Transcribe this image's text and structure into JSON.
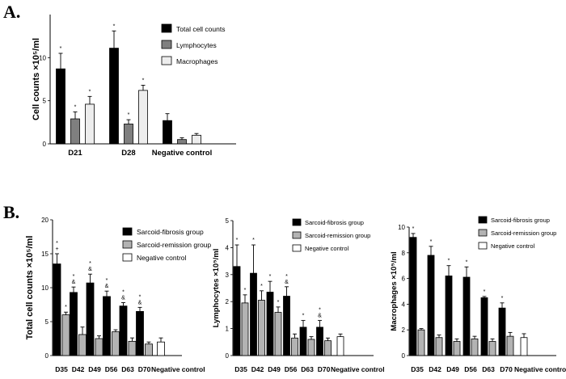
{
  "panel_labels": {
    "a": "A.",
    "b": "B."
  },
  "chart_data": [
    {
      "type": "bar",
      "title": "",
      "xlabel": "",
      "ylabel": "Cell counts ×10⁵/ml",
      "ylim": [
        0,
        15
      ],
      "yticks": [
        0,
        5,
        10
      ],
      "categories": [
        "D21",
        "D28",
        "Negative control"
      ],
      "legend_position": "top-right",
      "series": [
        {
          "name": "Total cell counts",
          "color": "#000000",
          "values": [
            8.7,
            11.1,
            2.7
          ],
          "errors": [
            1.8,
            2.0,
            0.8
          ],
          "marks": [
            "*",
            "*",
            ""
          ]
        },
        {
          "name": "Lymphocytes",
          "color": "#7f7f7f",
          "values": [
            2.9,
            2.3,
            0.5
          ],
          "errors": [
            0.8,
            0.5,
            0.2
          ],
          "marks": [
            "*",
            "*",
            ""
          ]
        },
        {
          "name": "Macrophages",
          "color": "#ededed",
          "values": [
            4.6,
            6.2,
            1.0
          ],
          "errors": [
            0.9,
            0.6,
            0.2
          ],
          "marks": [
            "*",
            "*",
            ""
          ]
        }
      ]
    },
    {
      "type": "bar",
      "title": "",
      "xlabel": "",
      "ylabel": "Total cell counts ×10⁵/ml",
      "ylim": [
        0,
        20
      ],
      "yticks": [
        0,
        5,
        10,
        15,
        20
      ],
      "categories": [
        "D35",
        "D42",
        "D49",
        "D56",
        "D63",
        "D70",
        "Negative control"
      ],
      "legend_position": "top-right",
      "series": [
        {
          "name": "Sarcoid-fibrosis group",
          "color": "#000000",
          "values": [
            13.5,
            9.3,
            10.7,
            8.7,
            7.3,
            6.5,
            null
          ],
          "errors": [
            1.5,
            0.8,
            1.3,
            0.8,
            0.5,
            0.6,
            null
          ],
          "marks": [
            "*\n+",
            "*\n&",
            "*\n&",
            "*\n&",
            "*\n&",
            "*\n&",
            ""
          ]
        },
        {
          "name": "Sarcoid-remission group",
          "color": "#b3b3b3",
          "values": [
            6.0,
            3.1,
            2.5,
            3.5,
            2.1,
            1.7,
            null
          ],
          "errors": [
            0.4,
            1.1,
            0.4,
            0.3,
            0.5,
            0.3,
            null
          ],
          "marks": [
            "*",
            "",
            "",
            "",
            "",
            "",
            ""
          ]
        },
        {
          "name": "Negative control",
          "color": "#ffffff",
          "values": [
            null,
            null,
            null,
            null,
            null,
            null,
            2.0
          ],
          "errors": [
            null,
            null,
            null,
            null,
            null,
            null,
            0.6
          ],
          "marks": [
            "",
            "",
            "",
            "",
            "",
            "",
            ""
          ]
        }
      ]
    },
    {
      "type": "bar",
      "title": "",
      "xlabel": "",
      "ylabel": "Lymphocytes ×10⁵/ml",
      "ylim": [
        0,
        5
      ],
      "yticks": [
        0,
        1,
        2,
        3,
        4,
        5
      ],
      "categories": [
        "D35",
        "D42",
        "D49",
        "D56",
        "D63",
        "D70",
        "Negative control"
      ],
      "legend_position": "top-right",
      "series": [
        {
          "name": "Sarcoid-fibrosis group",
          "color": "#000000",
          "values": [
            3.3,
            3.05,
            2.35,
            2.2,
            1.05,
            1.05,
            null
          ],
          "errors": [
            0.8,
            1.05,
            0.4,
            0.35,
            0.25,
            0.25,
            null
          ],
          "marks": [
            "*",
            "*",
            "*",
            "*\n&",
            "*",
            "*\n&",
            ""
          ]
        },
        {
          "name": "Sarcoid-remission group",
          "color": "#b3b3b3",
          "values": [
            1.95,
            2.05,
            1.6,
            0.65,
            0.6,
            0.55,
            null
          ],
          "errors": [
            0.3,
            0.35,
            0.2,
            0.15,
            0.1,
            0.1,
            null
          ],
          "marks": [
            "*",
            "*",
            "*",
            "",
            "",
            "",
            ""
          ]
        },
        {
          "name": "Negative control",
          "color": "#ffffff",
          "values": [
            null,
            null,
            null,
            null,
            null,
            null,
            0.7
          ],
          "errors": [
            null,
            null,
            null,
            null,
            null,
            null,
            0.1
          ],
          "marks": [
            "",
            "",
            "",
            "",
            "",
            "",
            ""
          ]
        }
      ]
    },
    {
      "type": "bar",
      "title": "",
      "xlabel": "",
      "ylabel": "Macrophages ×10⁵/ml",
      "ylim": [
        0,
        10
      ],
      "yticks": [
        0,
        2,
        4,
        6,
        8,
        10
      ],
      "categories": [
        "D35",
        "D42",
        "D49",
        "D56",
        "D63",
        "D70",
        "Negative control"
      ],
      "legend_position": "top-right",
      "series": [
        {
          "name": "Sarcoid-fibrosis group",
          "color": "#000000",
          "values": [
            9.2,
            7.8,
            6.2,
            6.1,
            4.5,
            3.7,
            null
          ],
          "errors": [
            0.3,
            0.7,
            0.8,
            0.8,
            0.1,
            0.4,
            null
          ],
          "marks": [
            "*",
            "*",
            "*",
            "*",
            "*",
            "*",
            ""
          ]
        },
        {
          "name": "Sarcoid-remission group",
          "color": "#b3b3b3",
          "values": [
            2.0,
            1.4,
            1.1,
            1.3,
            1.1,
            1.5,
            null
          ],
          "errors": [
            0.1,
            0.2,
            0.2,
            0.2,
            0.2,
            0.3,
            null
          ],
          "marks": [
            "",
            "",
            "",
            "",
            "",
            "",
            ""
          ]
        },
        {
          "name": "Negative control",
          "color": "#ffffff",
          "values": [
            null,
            null,
            null,
            null,
            null,
            null,
            1.4
          ],
          "errors": [
            null,
            null,
            null,
            null,
            null,
            null,
            0.3
          ],
          "marks": [
            "",
            "",
            "",
            "",
            "",
            "",
            ""
          ]
        }
      ]
    }
  ]
}
